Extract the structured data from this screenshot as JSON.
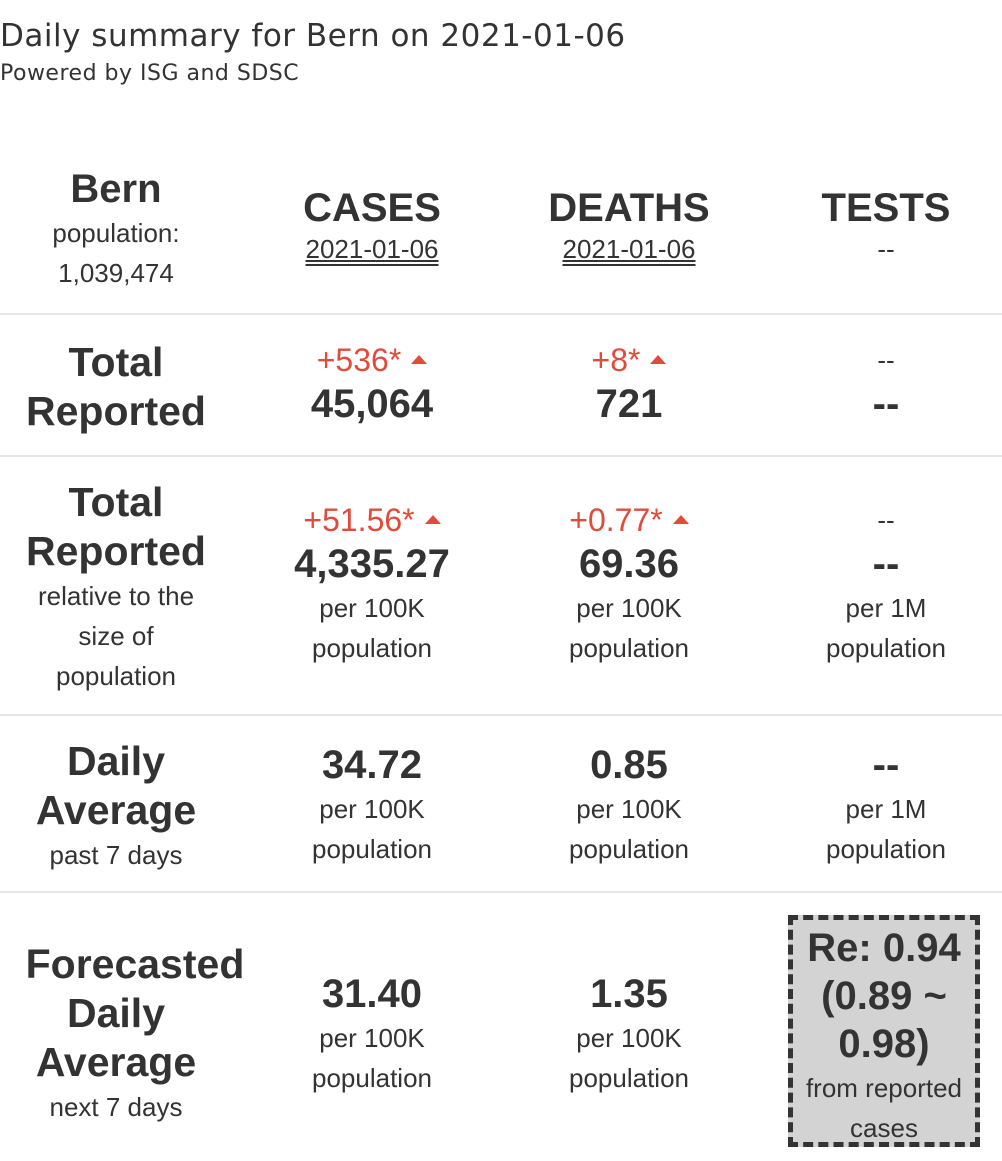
{
  "header": {
    "title": "Daily summary for Bern on 2021-01-06",
    "subtitle": "Powered by ISG and SDSC"
  },
  "region": {
    "name": "Bern",
    "population_label": "population:",
    "population": "1,039,474"
  },
  "columns": {
    "cases": {
      "label": "CASES",
      "date": "2021-01-06"
    },
    "deaths": {
      "label": "DEATHS",
      "date": "2021-01-06"
    },
    "tests": {
      "label": "TESTS",
      "date": "--"
    }
  },
  "total_reported": {
    "label_line1": "Total",
    "label_line2": "Reported",
    "cases_delta": "+536*",
    "cases_value": "45,064",
    "deaths_delta": "+8*",
    "deaths_value": "721",
    "tests_delta": "--",
    "tests_value": "--"
  },
  "relative": {
    "label_line1": "Total",
    "label_line2": "Reported",
    "desc_line1": "relative to the",
    "desc_line2": "size of",
    "desc_line3": "population",
    "cases_delta": "+51.56*",
    "cases_value": "4,335.27",
    "deaths_delta": "+0.77*",
    "deaths_value": "69.36",
    "tests_delta": "--",
    "tests_value": "--",
    "unit_100k": "per 100K",
    "unit_1m": "per 1M",
    "unit_population": "population"
  },
  "daily_average": {
    "label_line1": "Daily",
    "label_line2": "Average",
    "desc": "past 7 days",
    "cases_value": "34.72",
    "deaths_value": "0.85",
    "tests_value": "--",
    "unit_100k": "per 100K",
    "unit_1m": "per 1M",
    "unit_population": "population"
  },
  "forecast": {
    "label_line1": "Forecasted",
    "label_line2": "Daily",
    "label_line3": "Average",
    "desc": "next 7 days",
    "cases_value": "31.40",
    "deaths_value": "1.35",
    "unit_100k": "per 100K",
    "unit_population": "population",
    "re_line1": "Re: 0.94",
    "re_line2": "(0.89 ~",
    "re_line3": "0.98)",
    "re_desc1": "from reported",
    "re_desc2": "cases"
  },
  "colors": {
    "text": "#333333",
    "increase": "#e14b3b",
    "divider": "#e6e6e6",
    "re_box_bg": "#d3d3d3"
  }
}
